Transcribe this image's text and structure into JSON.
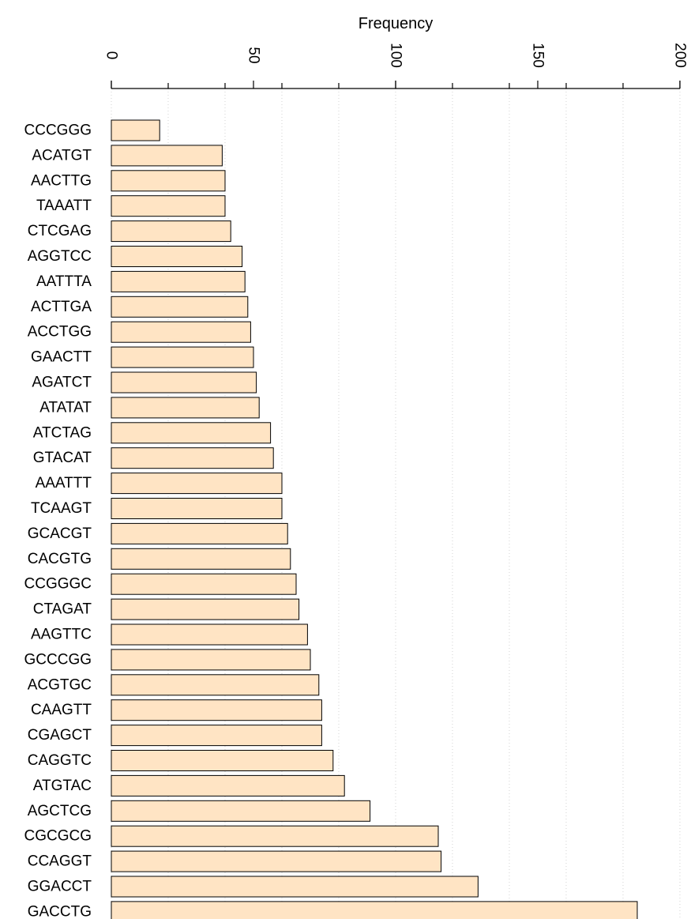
{
  "chart_data": {
    "type": "bar",
    "orientation": "horizontal",
    "title": "",
    "xlabel": "Frequency",
    "ylabel": "",
    "xlim": [
      0,
      200
    ],
    "xticks": [
      "0",
      "50",
      "100",
      "150",
      "200"
    ],
    "axis_position": "top",
    "grid": true,
    "bar_color": "#ffe4c4",
    "bar_edge_color": "#000000",
    "categories": [
      "CCCGGG",
      "ACATGT",
      "AACTTG",
      "TAAATT",
      "CTCGAG",
      "AGGTCC",
      "AATTTA",
      "ACTTGA",
      "ACCTGG",
      "GAACTT",
      "AGATCT",
      "ATATAT",
      "ATCTAG",
      "GTACAT",
      "AAATTT",
      "TCAAGT",
      "GCACGT",
      "CACGTG",
      "CCGGGC",
      "CTAGAT",
      "AAGTTC",
      "GCCCGG",
      "ACGTGC",
      "CAAGTT",
      "CGAGCT",
      "CAGGTC",
      "ATGTAC",
      "AGCTCG",
      "CGCGCG",
      "CCAGGT",
      "GGACCT",
      "GACCTG"
    ],
    "values": [
      17,
      39,
      40,
      40,
      42,
      46,
      47,
      48,
      49,
      50,
      51,
      52,
      56,
      57,
      60,
      60,
      62,
      63,
      65,
      66,
      69,
      70,
      73,
      74,
      74,
      78,
      82,
      91,
      115,
      116,
      129,
      185
    ]
  }
}
